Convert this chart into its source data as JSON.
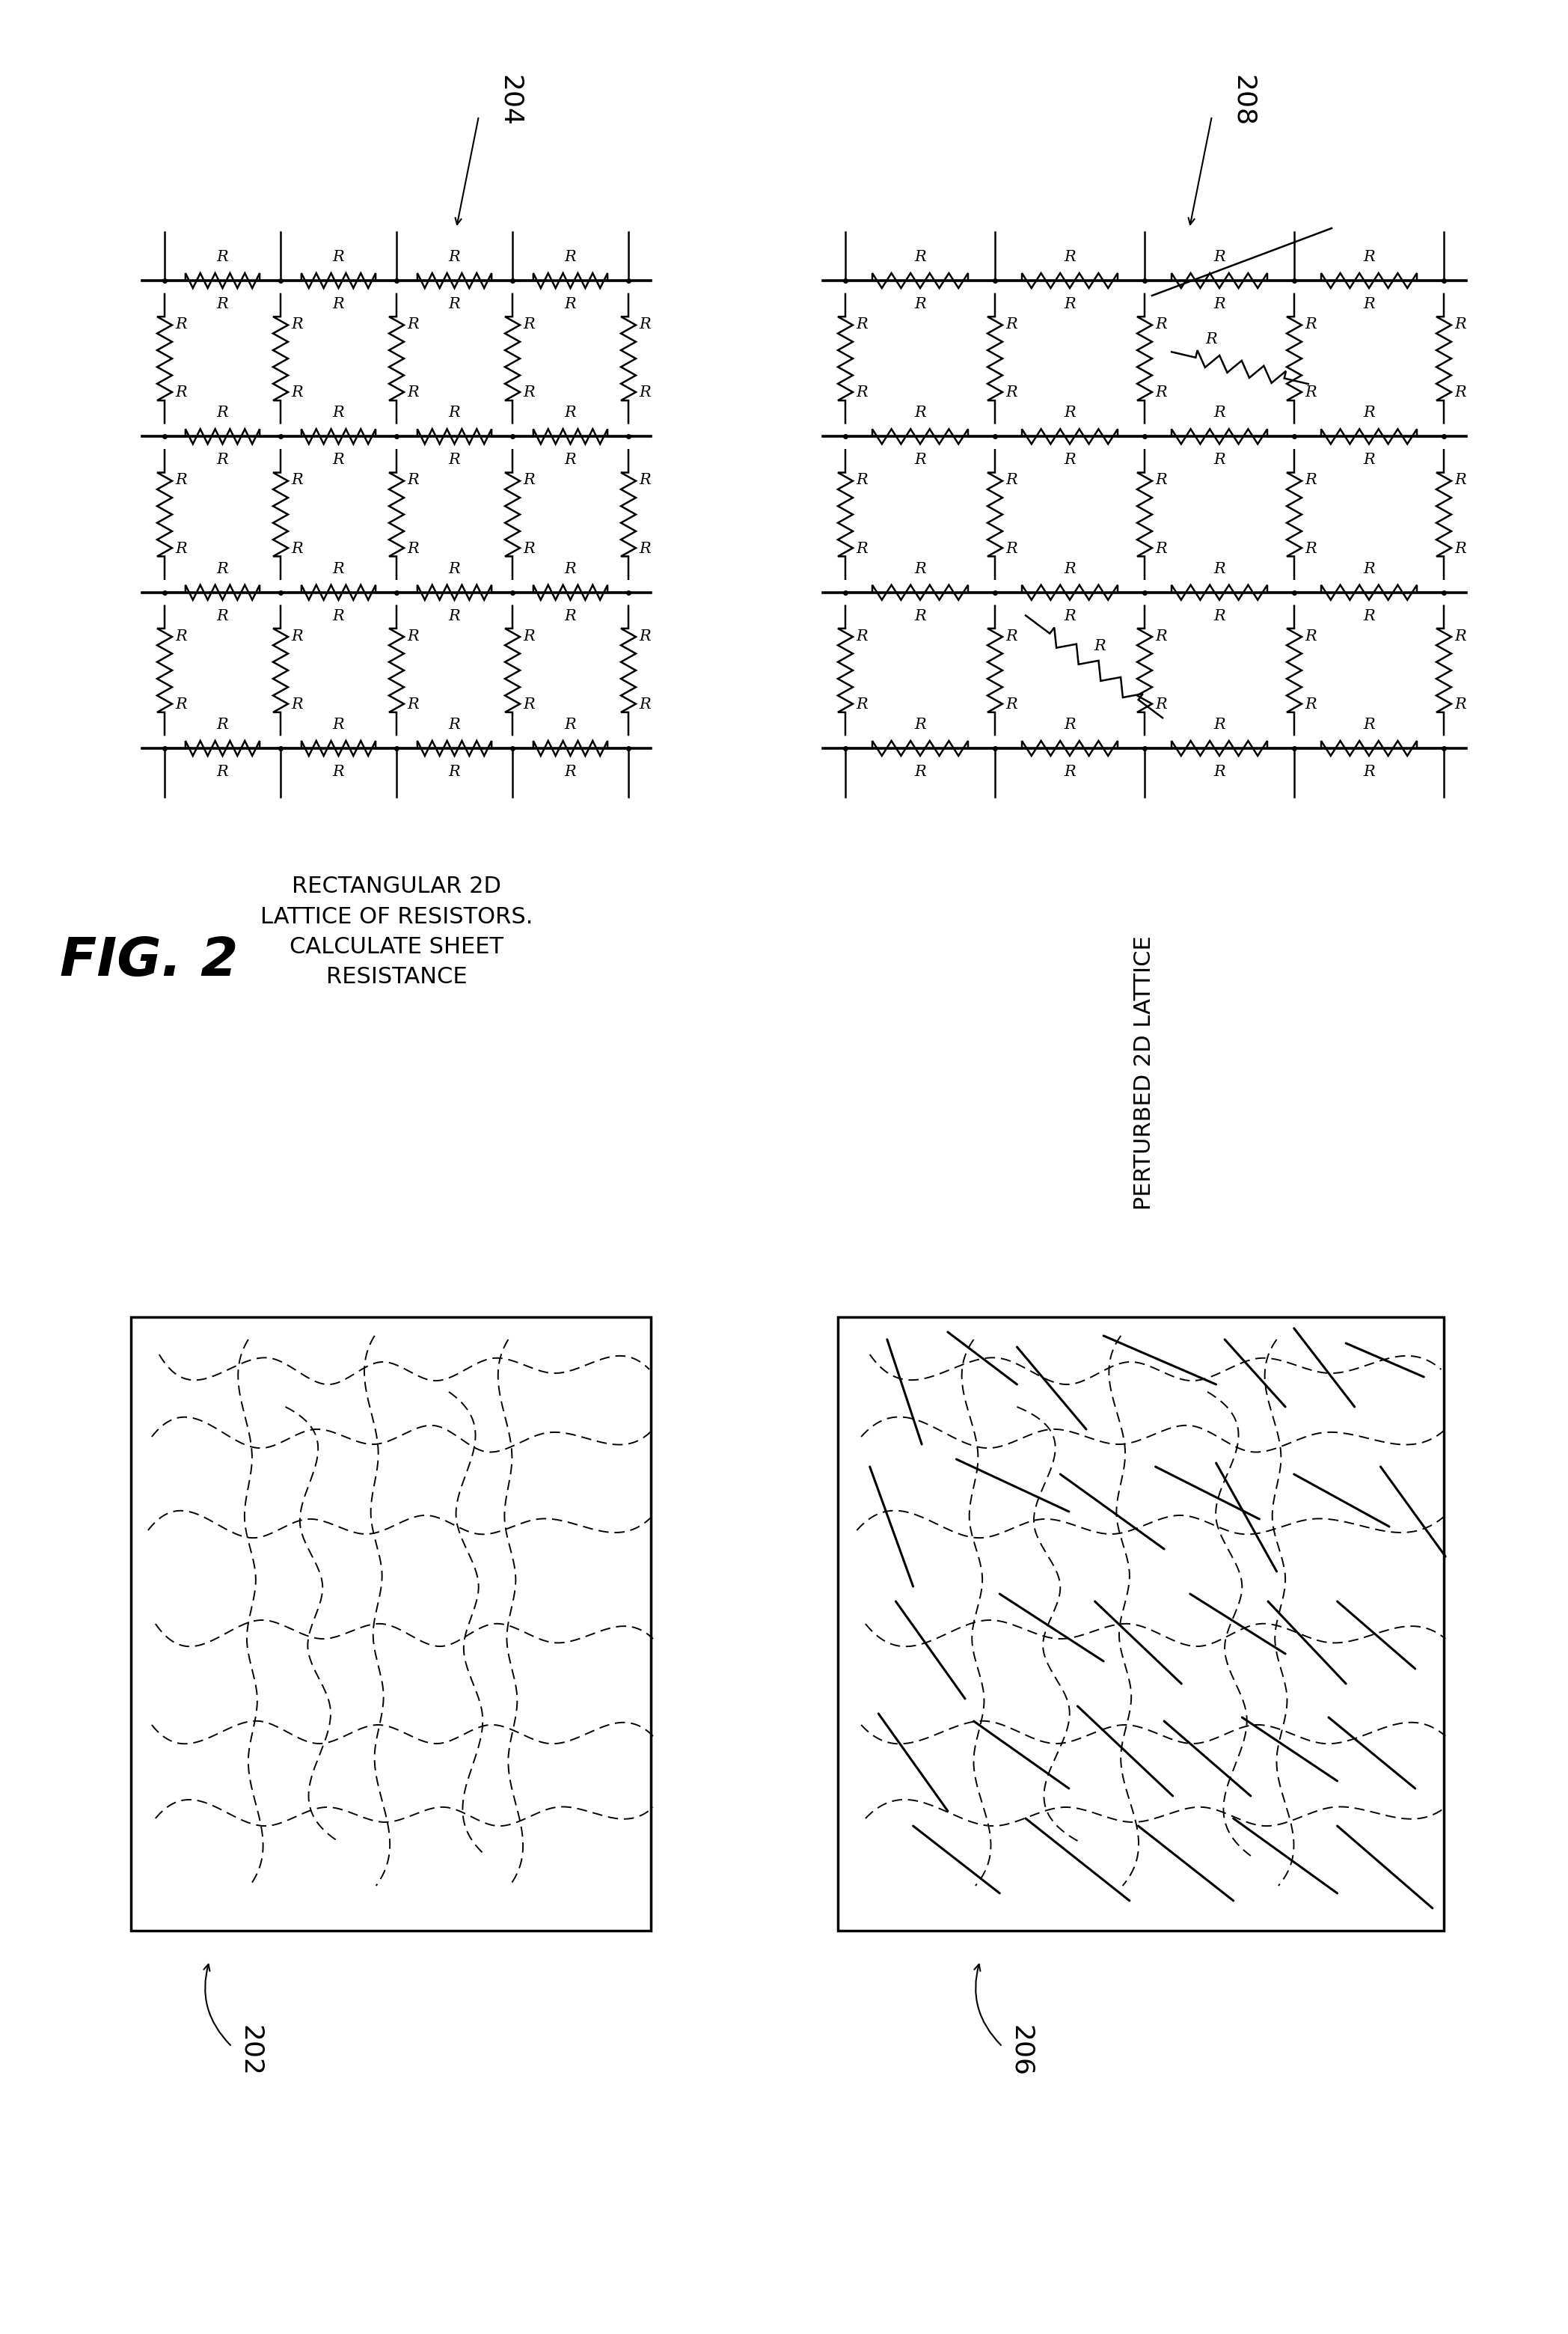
{
  "fig_label": "FIG. 2",
  "label_204": "204",
  "label_208": "208",
  "label_202": "202",
  "label_206": "206",
  "text_left": "RECTANGULAR 2D\nLATTICE OF RESISTORS.\nCALCULATE SHEET\nRESISTANCE",
  "text_right": "PERTURBED 2D LATTICE",
  "bg_color": "#ffffff",
  "line_color": "#000000"
}
